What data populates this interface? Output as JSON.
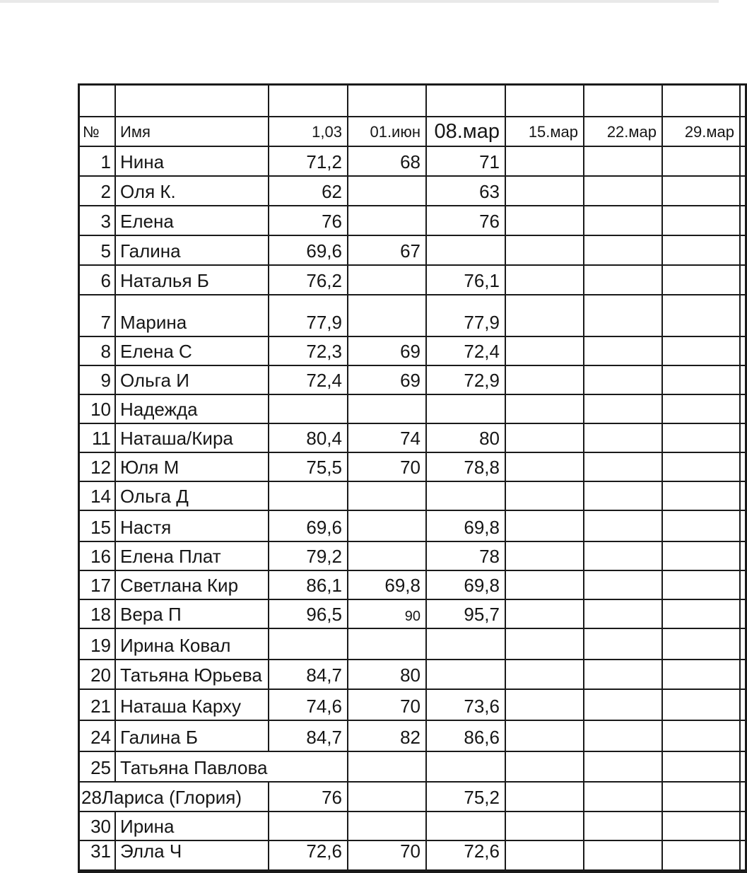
{
  "table": {
    "header": {
      "num_label": "№",
      "name_label": "Имя",
      "date_labels": [
        "1,03",
        "01.июн",
        "08.мар",
        "15.мар",
        "22.мар",
        "29.мар"
      ],
      "big_date_index": 2
    },
    "rows": [
      {
        "num": "1",
        "name": "Нина",
        "values": [
          "71,2",
          "68",
          "71",
          "",
          "",
          ""
        ]
      },
      {
        "num": "2",
        "name": "Оля К.",
        "values": [
          "62",
          "",
          "63",
          "",
          "",
          ""
        ]
      },
      {
        "num": "3",
        "name": "Елена",
        "values": [
          "76",
          "",
          "76",
          "",
          "",
          ""
        ]
      },
      {
        "num": "5",
        "name": "Галина",
        "values": [
          "69,6",
          "67",
          "",
          "",
          "",
          ""
        ]
      },
      {
        "num": "6",
        "name": "Наталья Б",
        "values": [
          "76,2",
          "",
          "76,1",
          "",
          "",
          ""
        ]
      },
      {
        "num": "7",
        "name": "Марина",
        "values": [
          "77,9",
          "",
          "77,9",
          "",
          "",
          ""
        ]
      },
      {
        "num": "8",
        "name": "Елена С",
        "values": [
          "72,3",
          "69",
          "72,4",
          "",
          "",
          ""
        ]
      },
      {
        "num": "9",
        "name": "Ольга И",
        "values": [
          "72,4",
          "69",
          "72,9",
          "",
          "",
          ""
        ]
      },
      {
        "num": "10",
        "name": "Надежда",
        "values": [
          "",
          "",
          "",
          "",
          "",
          ""
        ]
      },
      {
        "num": "11",
        "name": "Наташа/Кира",
        "values": [
          "80,4",
          "74",
          "80",
          "",
          "",
          ""
        ]
      },
      {
        "num": "12",
        "name": "Юля М",
        "values": [
          "75,5",
          "70",
          "78,8",
          "",
          "",
          ""
        ]
      },
      {
        "num": "14",
        "name": "Ольга Д",
        "values": [
          "",
          "",
          "",
          "",
          "",
          ""
        ]
      },
      {
        "num": "15",
        "name": "Настя",
        "values": [
          "69,6",
          "",
          "69,8",
          "",
          "",
          ""
        ]
      },
      {
        "num": "16",
        "name": "Елена Плат",
        "values": [
          "79,2",
          "",
          "78",
          "",
          "",
          ""
        ]
      },
      {
        "num": "17",
        "name": "Светлана Кир",
        "values": [
          "86,1",
          "69,8",
          "69,8",
          "",
          "",
          ""
        ]
      },
      {
        "num": "18",
        "name": "Вера П",
        "values": [
          "96,5",
          "90",
          "95,7",
          "",
          "",
          ""
        ],
        "small_value_indexes": [
          1
        ]
      },
      {
        "num": "19",
        "name": "Ирина Ковал",
        "values": [
          "",
          "",
          "",
          "",
          "",
          ""
        ]
      },
      {
        "num": "20",
        "name": "Татьяна Юрьева",
        "values": [
          "84,7",
          "80",
          "",
          "",
          "",
          ""
        ]
      },
      {
        "num": "21",
        "name": "Наташа Карху",
        "values": [
          "74,6",
          "70",
          "73,6",
          "",
          "",
          ""
        ]
      },
      {
        "num": "24",
        "name": "Галина Б",
        "values": [
          "84,7",
          "82",
          "86,6",
          "",
          "",
          ""
        ]
      },
      {
        "num": "25",
        "name": "Татьяна Павлова",
        "values": [
          "",
          "",
          "",
          "",
          "",
          ""
        ],
        "name_spans_next_column": true
      },
      {
        "num": "28",
        "name": "Лариса (Глория)",
        "values": [
          "76",
          "",
          "75,2",
          "",
          "",
          ""
        ],
        "num_joined_with_name": true
      },
      {
        "num": "30",
        "name": "Ирина",
        "values": [
          "",
          "",
          "",
          "",
          "",
          ""
        ]
      },
      {
        "num": "31",
        "name": "Элла Ч",
        "values": [
          "72,6",
          "70",
          "72,6",
          "",
          "",
          ""
        ]
      }
    ]
  }
}
